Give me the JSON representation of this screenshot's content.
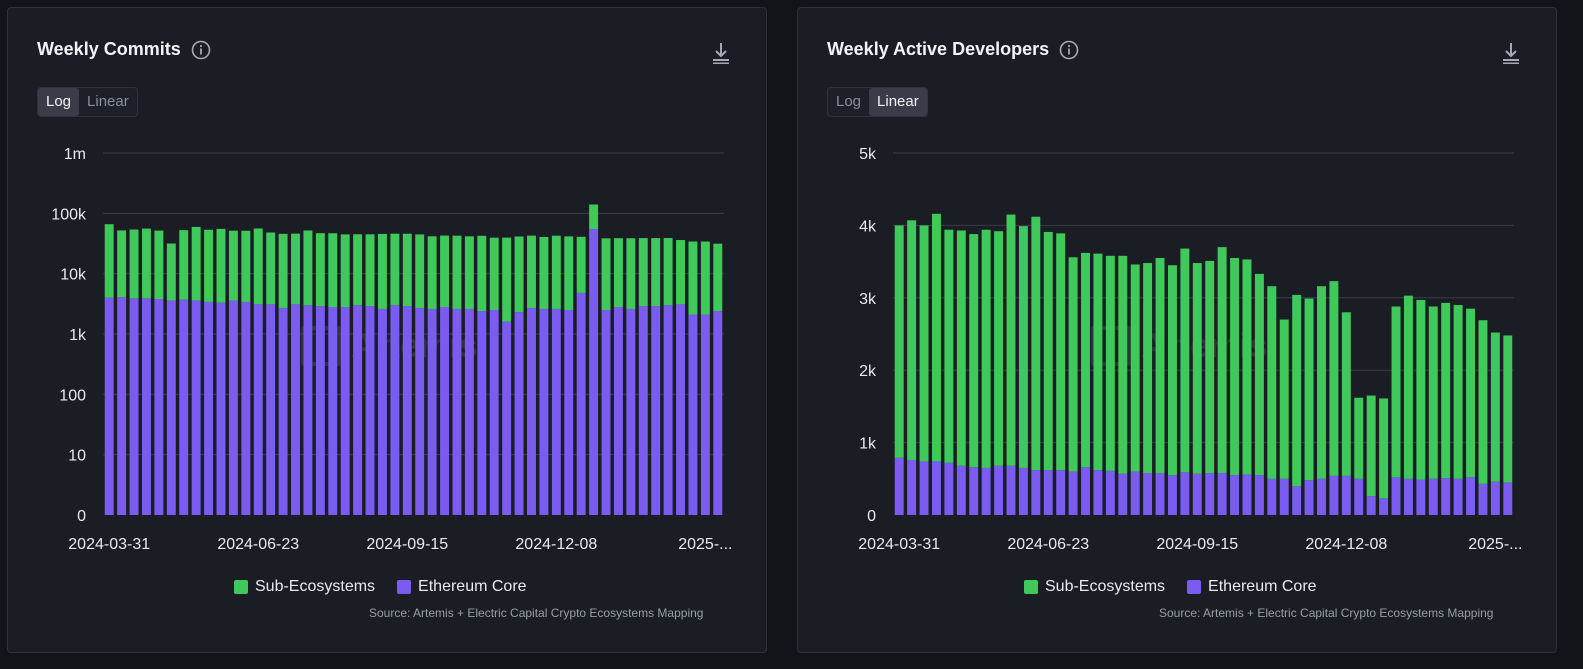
{
  "panels": [
    {
      "title": "Weekly Commits",
      "toggle": {
        "log": "Log",
        "linear": "Linear",
        "selected": "Log"
      },
      "watermark": "Artemis",
      "source": "Source: Artemis + Electric Capital Crypto Ecosystems Mapping",
      "legend": [
        {
          "label": "Sub-Ecosystems",
          "color": "#3ec95a"
        },
        {
          "label": "Ethereum Core",
          "color": "#7b5cf0"
        }
      ]
    },
    {
      "title": "Weekly Active Developers",
      "toggle": {
        "log": "Log",
        "linear": "Linear",
        "selected": "Linear"
      },
      "watermark": "Artemis",
      "source": "Source: Artemis + Electric Capital Crypto Ecosystems Mapping",
      "legend": [
        {
          "label": "Sub-Ecosystems",
          "color": "#3ec95a"
        },
        {
          "label": "Ethereum Core",
          "color": "#7b5cf0"
        }
      ]
    }
  ],
  "chart_data": [
    {
      "type": "bar",
      "stacked": true,
      "scale": "log",
      "title": "Weekly Commits",
      "yticks": [
        {
          "label": "1m",
          "value": 1000000
        },
        {
          "label": "100k",
          "value": 100000
        },
        {
          "label": "10k",
          "value": 10000
        },
        {
          "label": "1k",
          "value": 1000
        },
        {
          "label": "100",
          "value": 100
        },
        {
          "label": "10",
          "value": 10
        },
        {
          "label": "0",
          "value": 1
        }
      ],
      "xtick_labels": [
        {
          "label": "2024-03-31",
          "index": 0
        },
        {
          "label": "2024-06-23",
          "index": 12
        },
        {
          "label": "2024-09-15",
          "index": 24
        },
        {
          "label": "2024-12-08",
          "index": 36
        },
        {
          "label": "2025-...",
          "index": 48
        }
      ],
      "ylim": [
        1,
        1000000
      ],
      "series": [
        {
          "name": "Ethereum Core",
          "color": "#7b5cf0",
          "values": [
            4000,
            4100,
            3900,
            3900,
            3800,
            3600,
            3700,
            3600,
            3400,
            3300,
            3600,
            3400,
            3100,
            3100,
            2700,
            3100,
            3000,
            2900,
            2800,
            2800,
            3000,
            2900,
            2600,
            3000,
            2900,
            2700,
            2600,
            2800,
            2600,
            2600,
            2400,
            2500,
            1600,
            2300,
            2700,
            2600,
            2600,
            2500,
            4800,
            55000,
            2500,
            2800,
            2600,
            2900,
            2900,
            3000,
            3100,
            2100,
            2100,
            2400
          ]
        },
        {
          "name": "Sub-Ecosystems",
          "color": "#3ec95a",
          "values": [
            62000,
            48000,
            50000,
            52000,
            48000,
            28000,
            49000,
            56000,
            50000,
            52000,
            48000,
            48000,
            53000,
            45000,
            43000,
            43000,
            49000,
            44000,
            44000,
            42000,
            42000,
            42000,
            43000,
            43000,
            43000,
            42000,
            39000,
            40000,
            40000,
            39000,
            40000,
            37000,
            38000,
            39000,
            40000,
            38000,
            40000,
            39000,
            36000,
            85000,
            36000,
            36000,
            36000,
            36000,
            36000,
            36000,
            33000,
            32000,
            32000,
            29000
          ]
        }
      ]
    },
    {
      "type": "bar",
      "stacked": true,
      "scale": "linear",
      "title": "Weekly Active Developers",
      "yticks": [
        {
          "label": "5k",
          "value": 5000
        },
        {
          "label": "4k",
          "value": 4000
        },
        {
          "label": "3k",
          "value": 3000
        },
        {
          "label": "2k",
          "value": 2000
        },
        {
          "label": "1k",
          "value": 1000
        },
        {
          "label": "0",
          "value": 0
        }
      ],
      "xtick_labels": [
        {
          "label": "2024-03-31",
          "index": 0
        },
        {
          "label": "2024-06-23",
          "index": 12
        },
        {
          "label": "2024-09-15",
          "index": 24
        },
        {
          "label": "2024-12-08",
          "index": 36
        },
        {
          "label": "2025-...",
          "index": 48
        }
      ],
      "ylim": [
        0,
        5000
      ],
      "series": [
        {
          "name": "Ethereum Core",
          "color": "#7b5cf0",
          "values": [
            790,
            760,
            740,
            740,
            720,
            680,
            660,
            650,
            680,
            680,
            650,
            620,
            620,
            620,
            600,
            660,
            620,
            610,
            570,
            600,
            580,
            580,
            550,
            590,
            570,
            580,
            580,
            550,
            560,
            550,
            500,
            500,
            400,
            480,
            500,
            540,
            540,
            500,
            260,
            230,
            520,
            500,
            490,
            500,
            510,
            500,
            520,
            430,
            460,
            450
          ]
        },
        {
          "name": "Sub-Ecosystems",
          "color": "#3ec95a",
          "values": [
            3210,
            3310,
            3260,
            3420,
            3220,
            3250,
            3220,
            3290,
            3240,
            3470,
            3340,
            3500,
            3290,
            3270,
            2960,
            2960,
            2990,
            2970,
            3010,
            2860,
            2900,
            2970,
            2900,
            3090,
            2910,
            2930,
            3120,
            3000,
            2970,
            2780,
            2660,
            2200,
            2640,
            2510,
            2660,
            2690,
            2260,
            1120,
            1390,
            1380,
            2360,
            2530,
            2480,
            2380,
            2420,
            2400,
            2330,
            2260,
            2060,
            2030
          ]
        }
      ]
    }
  ]
}
